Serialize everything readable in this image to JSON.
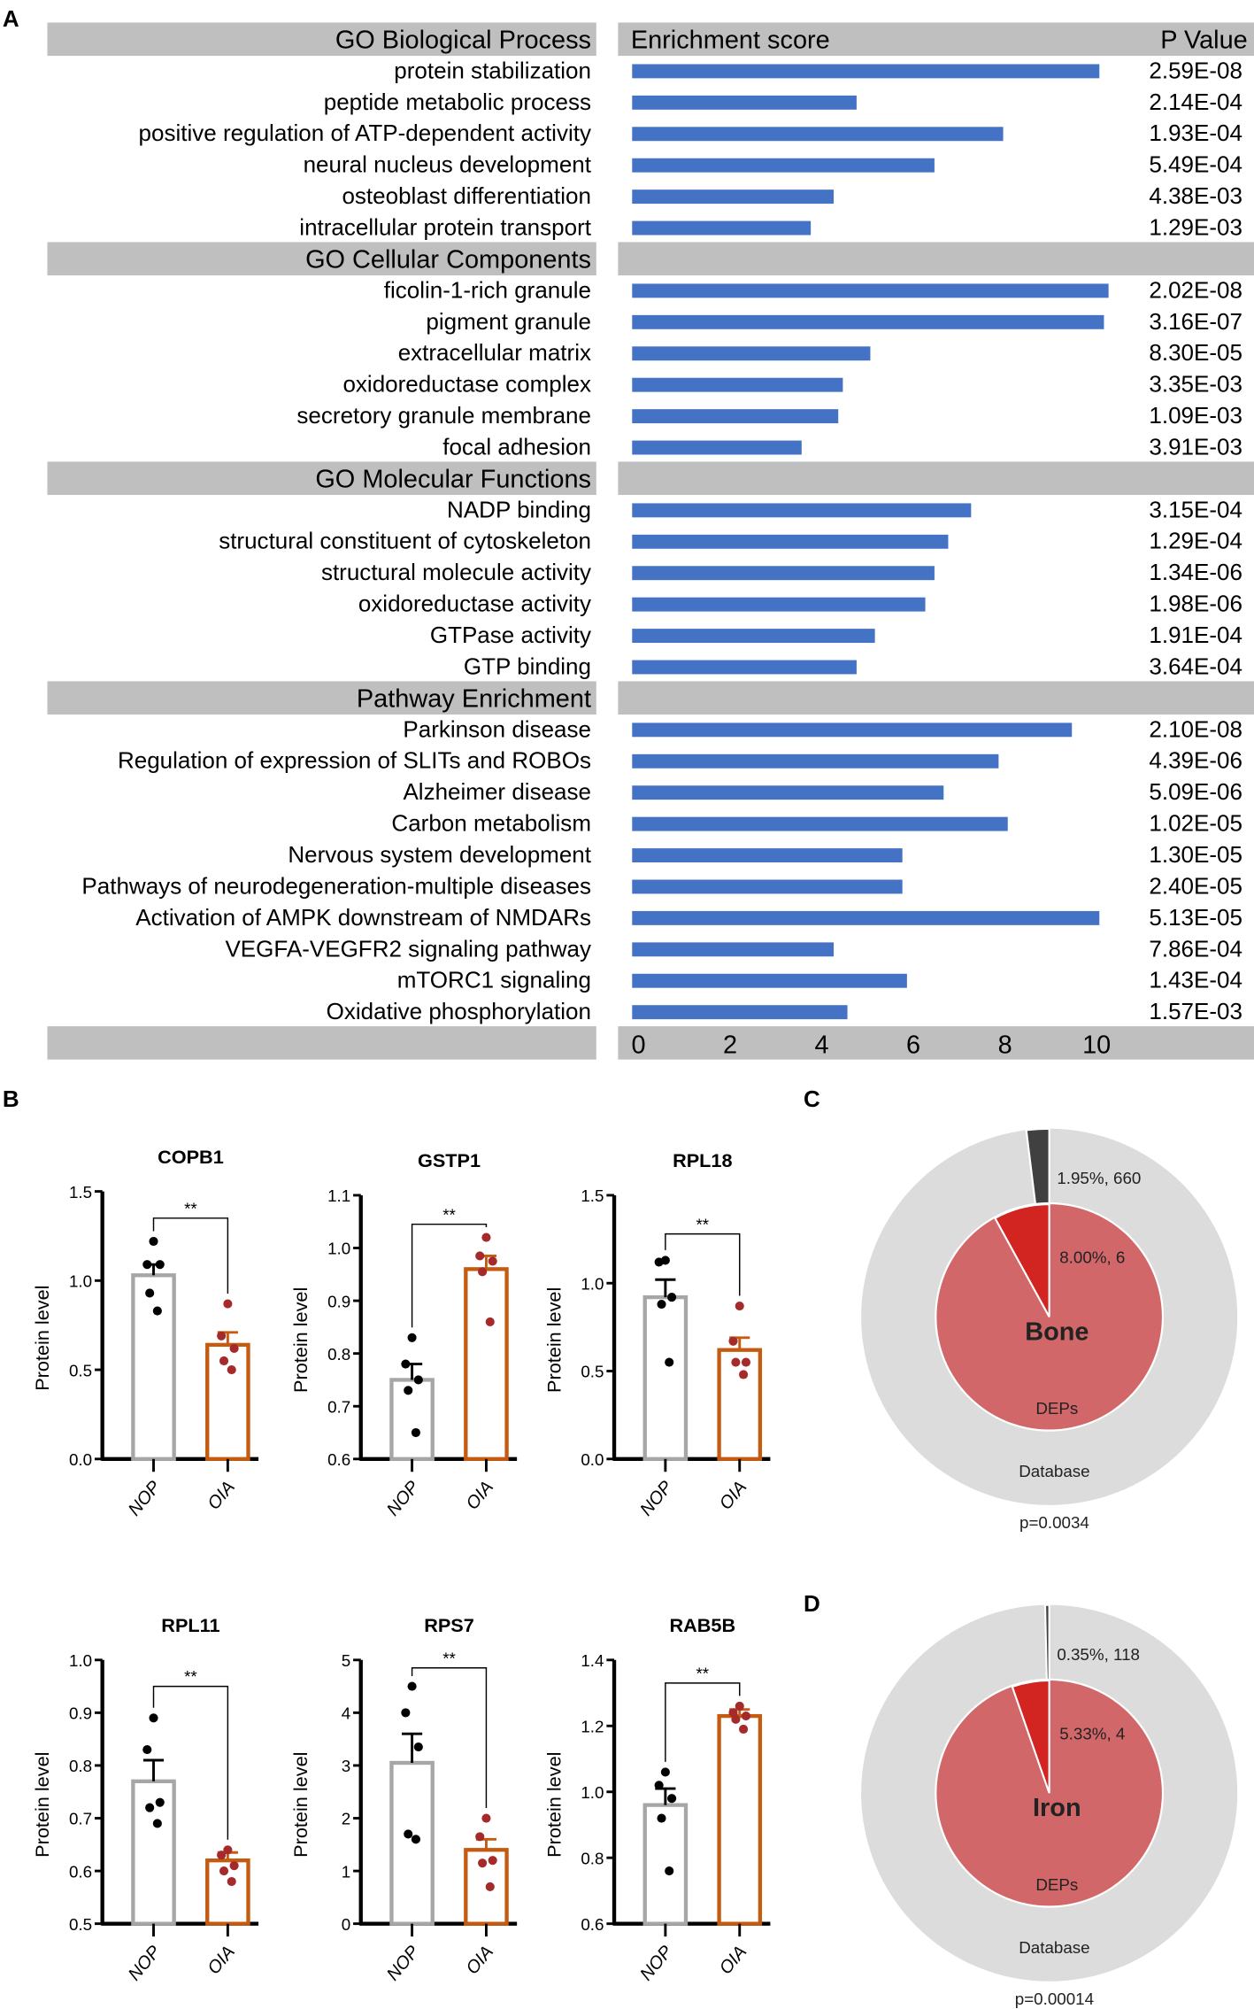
{
  "panel_labels": {
    "a": "A",
    "b": "B",
    "c": "C",
    "d": "D"
  },
  "chart_data": [
    {
      "type": "bar",
      "orientation": "horizontal",
      "panel": "A",
      "header_left": "GO Biological Process",
      "header_mid": "Enrichment score",
      "header_right": "P Value",
      "xlim": [
        0,
        10.5
      ],
      "xticks": [
        "0",
        "2",
        "4",
        "6",
        "8",
        "10"
      ],
      "bar_color": "#4472c4",
      "header_color": "#bfbfbf",
      "groups": [
        {
          "name": "GO Biological Process",
          "items": [
            {
              "label": "protein stabilization",
              "score": 10.2,
              "p": "2.59E-08"
            },
            {
              "label": "peptide metabolic process",
              "score": 4.9,
              "p": "2.14E-04"
            },
            {
              "label": "positive regulation of ATP-dependent activity",
              "score": 8.1,
              "p": "1.93E-04"
            },
            {
              "label": "neural nucleus development",
              "score": 6.6,
              "p": "5.49E-04"
            },
            {
              "label": "osteoblast differentiation",
              "score": 4.4,
              "p": "4.38E-03"
            },
            {
              "label": "intracellular protein transport",
              "score": 3.9,
              "p": "1.29E-03"
            }
          ]
        },
        {
          "name": "GO Cellular Components",
          "items": [
            {
              "label": "ficolin-1-rich granule",
              "score": 10.4,
              "p": "2.02E-08"
            },
            {
              "label": "pigment granule",
              "score": 10.3,
              "p": "3.16E-07"
            },
            {
              "label": "extracellular matrix",
              "score": 5.2,
              "p": "8.30E-05"
            },
            {
              "label": "oxidoreductase complex",
              "score": 4.6,
              "p": "3.35E-03"
            },
            {
              "label": "secretory granule membrane",
              "score": 4.5,
              "p": "1.09E-03"
            },
            {
              "label": "focal adhesion",
              "score": 3.7,
              "p": "3.91E-03"
            }
          ]
        },
        {
          "name": "GO Molecular Functions",
          "items": [
            {
              "label": "NADP binding",
              "score": 7.4,
              "p": "3.15E-04"
            },
            {
              "label": "structural constituent of cytoskeleton",
              "score": 6.9,
              "p": "1.29E-04"
            },
            {
              "label": "structural molecule activity",
              "score": 6.6,
              "p": "1.34E-06"
            },
            {
              "label": "oxidoreductase activity",
              "score": 6.4,
              "p": "1.98E-06"
            },
            {
              "label": "GTPase activity",
              "score": 5.3,
              "p": "1.91E-04"
            },
            {
              "label": "GTP binding",
              "score": 4.9,
              "p": "3.64E-04"
            }
          ]
        },
        {
          "name": "Pathway Enrichment",
          "items": [
            {
              "label": "Parkinson disease",
              "score": 9.6,
              "p": "2.10E-08"
            },
            {
              "label": "Regulation of expression of SLITs and ROBOs",
              "score": 8.0,
              "p": "4.39E-06"
            },
            {
              "label": "Alzheimer disease",
              "score": 6.8,
              "p": "5.09E-06"
            },
            {
              "label": "Carbon metabolism",
              "score": 8.2,
              "p": "1.02E-05"
            },
            {
              "label": "Nervous system development",
              "score": 5.9,
              "p": "1.30E-05"
            },
            {
              "label": "Pathways of neurodegeneration-multiple diseases",
              "score": 5.9,
              "p": "2.40E-05"
            },
            {
              "label": "Activation of AMPK downstream of NMDARs",
              "score": 10.2,
              "p": "5.13E-05"
            },
            {
              "label": "VEGFA-VEGFR2 signaling pathway",
              "score": 4.4,
              "p": "7.86E-04"
            },
            {
              "label": "mTORC1 signaling",
              "score": 6.0,
              "p": "1.43E-04"
            },
            {
              "label": "Oxidative phosphorylation",
              "score": 4.7,
              "p": "1.57E-03"
            }
          ]
        }
      ]
    },
    {
      "type": "bar",
      "panel": "B",
      "ylabel": "Protein level",
      "categories": [
        "NOP",
        "OIA"
      ],
      "colors": {
        "NOP": "#a6a6a6",
        "OIA": "#c55a11",
        "NOP_dots": "#000000",
        "OIA_dots": "#a52a2a"
      },
      "significance": "**",
      "plots": [
        {
          "title": "COPB1",
          "ylim": [
            0,
            1.5
          ],
          "yticks": [
            "0.0",
            "0.5",
            "1.0",
            "1.5"
          ],
          "step": 0.5,
          "bracket": 1.35,
          "NOP": {
            "mean": 1.03,
            "sem": 0.06,
            "points": [
              1.22,
              1.09,
              1.09,
              0.93,
              0.83
            ]
          },
          "OIA": {
            "mean": 0.64,
            "sem": 0.07,
            "points": [
              0.87,
              0.69,
              0.62,
              0.55,
              0.5
            ]
          }
        },
        {
          "title": "GSTP1",
          "ylim": [
            0.6,
            1.1
          ],
          "yticks": [
            "0.6",
            "0.7",
            "0.8",
            "0.9",
            "1.0",
            "1.1"
          ],
          "step": 0.1,
          "bracket": 1.045,
          "NOP": {
            "mean": 0.75,
            "sem": 0.03,
            "points": [
              0.83,
              0.78,
              0.75,
              0.73,
              0.65
            ]
          },
          "OIA": {
            "mean": 0.96,
            "sem": 0.025,
            "points": [
              1.02,
              0.985,
              0.975,
              0.955,
              0.86
            ]
          }
        },
        {
          "title": "RPL18",
          "ylim": [
            0,
            1.5
          ],
          "yticks": [
            "0.0",
            "0.5",
            "1.0",
            "1.5"
          ],
          "step": 0.5,
          "bracket": 1.28,
          "NOP": {
            "mean": 0.92,
            "sem": 0.1,
            "points": [
              1.13,
              1.12,
              0.92,
              0.88,
              0.55
            ]
          },
          "OIA": {
            "mean": 0.62,
            "sem": 0.07,
            "points": [
              0.87,
              0.67,
              0.55,
              0.55,
              0.48
            ]
          }
        },
        {
          "title": "RPL11",
          "ylim": [
            0.5,
            1.0
          ],
          "yticks": [
            "0.5",
            "0.6",
            "0.7",
            "0.8",
            "0.9",
            "1.0"
          ],
          "step": 0.1,
          "bracket": 0.95,
          "NOP": {
            "mean": 0.77,
            "sem": 0.04,
            "points": [
              0.89,
              0.83,
              0.73,
              0.72,
              0.69
            ]
          },
          "OIA": {
            "mean": 0.62,
            "sem": 0.015,
            "points": [
              0.64,
              0.63,
              0.61,
              0.6,
              0.58
            ]
          }
        },
        {
          "title": "RPS7",
          "ylim": [
            0,
            5
          ],
          "yticks": [
            "0",
            "1",
            "2",
            "3",
            "4",
            "5"
          ],
          "step": 1,
          "bracket": 4.85,
          "NOP": {
            "mean": 3.05,
            "sem": 0.55,
            "points": [
              4.5,
              4.0,
              3.35,
              1.7,
              1.6
            ]
          },
          "OIA": {
            "mean": 1.4,
            "sem": 0.2,
            "points": [
              2.0,
              1.65,
              1.2,
              1.15,
              0.7
            ]
          }
        },
        {
          "title": "RAB5B",
          "ylim": [
            0.6,
            1.4
          ],
          "yticks": [
            "0.6",
            "0.8",
            "1.0",
            "1.2",
            "1.4"
          ],
          "step": 0.2,
          "bracket": 1.33,
          "NOP": {
            "mean": 0.96,
            "sem": 0.05,
            "points": [
              1.06,
              1.02,
              0.98,
              0.92,
              0.76
            ]
          },
          "OIA": {
            "mean": 1.23,
            "sem": 0.02,
            "points": [
              1.26,
              1.24,
              1.23,
              1.22,
              1.19
            ]
          }
        }
      ]
    },
    {
      "type": "pie",
      "panel": "C",
      "center_label": "Bone",
      "outer": {
        "name": "Database",
        "percent": 1.95,
        "label": "1.95%, 660"
      },
      "inner": {
        "name": "DEPs",
        "percent": 8.0,
        "label": "8.00%, 6"
      },
      "p_value": "p=0.0034",
      "colors": {
        "outer_bg": "#dcdcdc",
        "outer_slice": "#404040",
        "inner_bg": "#d2676a",
        "inner_slice": "#d22420"
      }
    },
    {
      "type": "pie",
      "panel": "D",
      "center_label": "Iron",
      "outer": {
        "name": "Database",
        "percent": 0.35,
        "label": "0.35%, 118"
      },
      "inner": {
        "name": "DEPs",
        "percent": 5.33,
        "label": "5.33%, 4"
      },
      "p_value": "p=0.00014",
      "colors": {
        "outer_bg": "#dcdcdc",
        "outer_slice": "#404040",
        "inner_bg": "#d2676a",
        "inner_slice": "#d22420"
      }
    }
  ]
}
